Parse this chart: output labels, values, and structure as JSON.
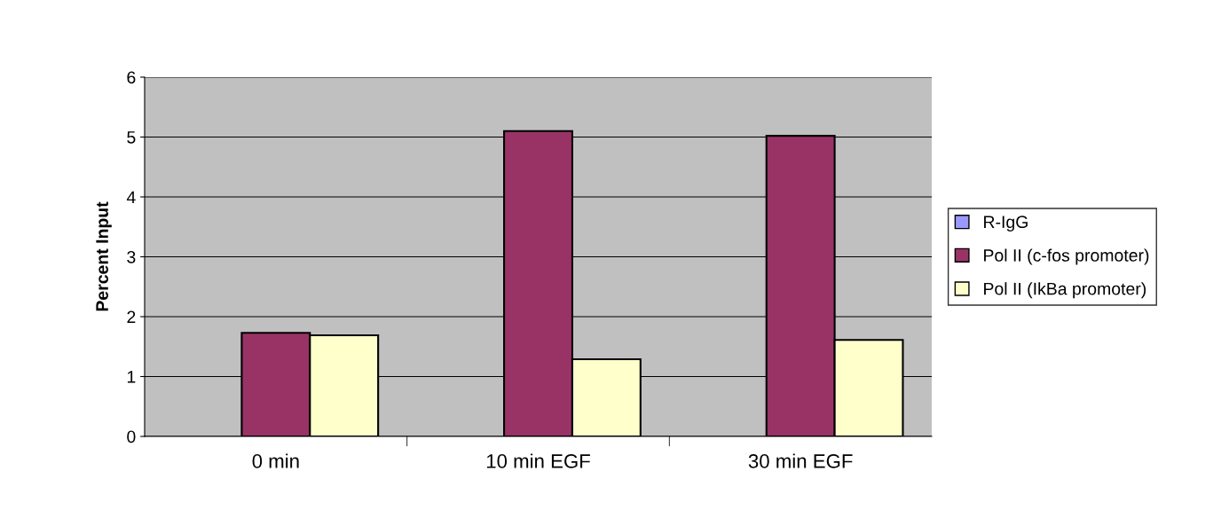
{
  "chart_data": {
    "type": "bar",
    "ylabel": "Percent Input",
    "categories": [
      "0 min",
      "10 min EGF",
      "30 min EGF"
    ],
    "series": [
      {
        "name": "R-IgG",
        "color": "#9999ff",
        "values": [
          0,
          0,
          0
        ]
      },
      {
        "name": "Pol II (c-fos promoter)",
        "color": "#993366",
        "values": [
          1.73,
          5.1,
          5.02
        ]
      },
      {
        "name": "Pol II (IkBa promoter)",
        "color": "#ffffcc",
        "values": [
          1.69,
          1.29,
          1.61
        ]
      }
    ],
    "ylim": [
      0,
      6
    ],
    "yticks": [
      0,
      1,
      2,
      3,
      4,
      5,
      6
    ],
    "grid": "y",
    "legend": "right"
  }
}
